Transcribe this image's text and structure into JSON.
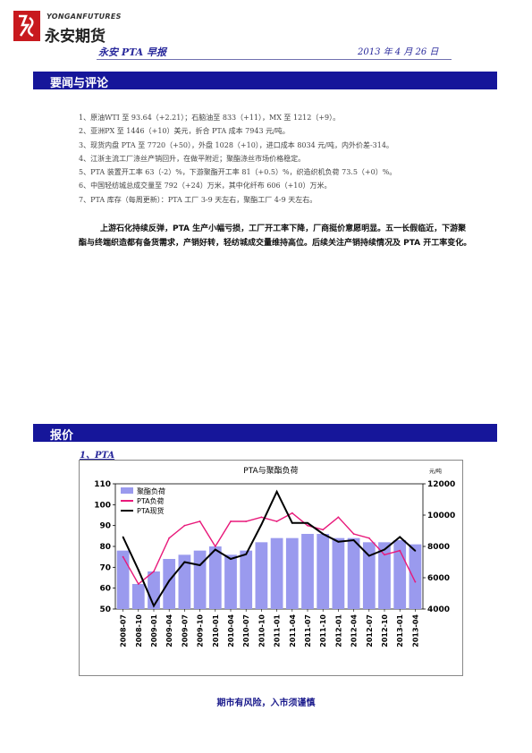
{
  "header": {
    "logo_en": "YONGANFUTURES",
    "logo_cn": "永安期货",
    "brand": "永安 PTA 早报",
    "date": "2013 年 4 月 26 日"
  },
  "sections": {
    "news_title": "要闻与评论",
    "price_title": "报价"
  },
  "news": [
    "1、原油WTI 至 93.64（+2.21）；石脑油至 833（+11），MX 至 1212（+9）。",
    "2、亚洲PX 至 1446（+10）美元，折合 PTA 成本 7943 元/吨。",
    "3、现货内盘 PTA 至 7720（+50），外盘 1028（+10），进口成本 8034 元/吨，内外价差-314。",
    "4、江浙主流工厂涤丝产销回升，在做平附近；聚酯涤丝市场价格稳定。",
    "5、PTA 装置开工率 63（-2）%，下游聚酯开工率 81（+0.5）%，织造织机负荷 73.5（+0）%。",
    "6、中国轻纺城总成交量至 792（+24）万米，其中化纤布 606（+10）万米。",
    "7、PTA 库存（每周更新）：PTA 工厂 3-9 天左右，聚酯工厂 4-9 天左右。"
  ],
  "commentary": "上游石化持续反弹，PTA 生产小幅亏损，工厂开工率下降，厂商挺价意愿明显。五一长假临近，下游聚酯与终端织造都有备货需求，产销好转，轻纺城成交量维持高位。后续关注产销持续情况及 PTA 开工率变化。",
  "subhead": "1、PTA",
  "footer": "期市有风险，入市须谨慎",
  "chart_data": {
    "type": "line",
    "title": "PTA与聚酯负荷",
    "unit_right": "元/吨",
    "x": [
      "2008-07",
      "2008-10",
      "2009-01",
      "2009-04",
      "2009-07",
      "2009-10",
      "2010-01",
      "2010-04",
      "2010-07",
      "2010-10",
      "2011-01",
      "2011-04",
      "2011-07",
      "2011-10",
      "2012-01",
      "2012-04",
      "2012-07",
      "2012-10",
      "2013-01",
      "2013-04"
    ],
    "ylim_left": [
      50,
      110
    ],
    "yticks_left": [
      50,
      60,
      70,
      80,
      90,
      100,
      110
    ],
    "ylim_right": [
      4000,
      12000
    ],
    "yticks_right": [
      4000,
      6000,
      8000,
      10000,
      12000
    ],
    "legend_position": "top-left",
    "series": [
      {
        "name": "聚酯负荷",
        "axis": "left",
        "kind": "bar",
        "color": "#9a9aee",
        "values": [
          78,
          62,
          68,
          74,
          76,
          78,
          80,
          76,
          78,
          82,
          84,
          84,
          86,
          86,
          84,
          84,
          82,
          82,
          83,
          81
        ]
      },
      {
        "name": "PTA负荷",
        "axis": "left",
        "kind": "line",
        "color": "#e8197a",
        "values": [
          75,
          62,
          68,
          84,
          90,
          92,
          80,
          92,
          92,
          94,
          92,
          96,
          90,
          88,
          94,
          86,
          84,
          76,
          78,
          63
        ]
      },
      {
        "name": "PTA现货",
        "axis": "right",
        "kind": "line",
        "color": "#000000",
        "values": [
          8600,
          6500,
          4200,
          5800,
          7000,
          6800,
          7800,
          7200,
          7500,
          9400,
          11500,
          9500,
          9500,
          8800,
          8300,
          8400,
          7400,
          7800,
          8600,
          7720
        ]
      }
    ]
  }
}
